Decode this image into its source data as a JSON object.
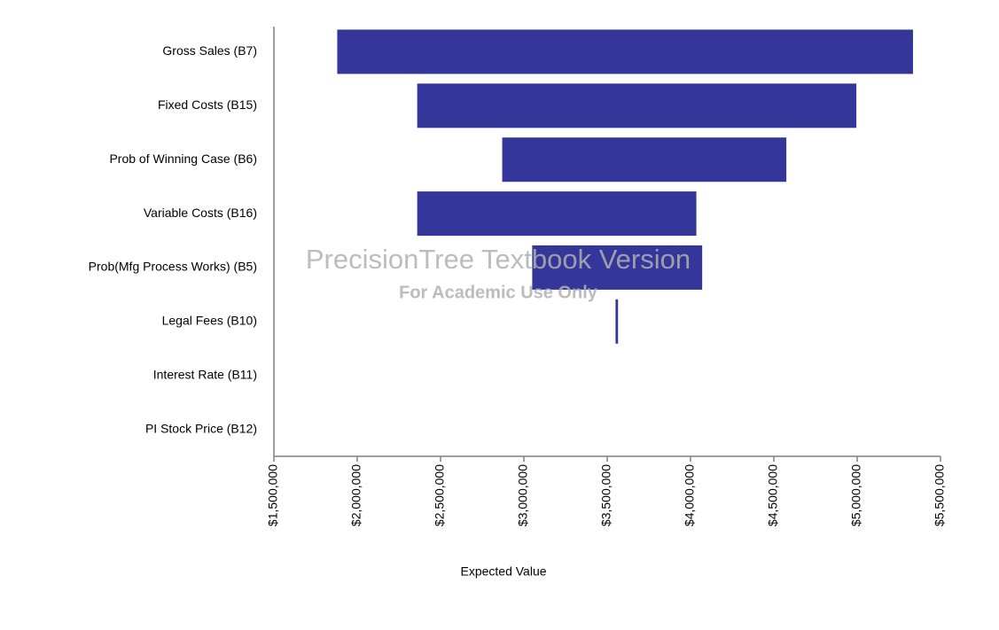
{
  "chart_data": {
    "type": "tornado",
    "categories": [
      "Gross Sales (B7)",
      "Fixed Costs (B15)",
      "Prob of Winning Case (B6)",
      "Variable Costs (B16)",
      "Prob(Mfg Process Works) (B5)",
      "Legal Fees (B10)",
      "Interest Rate (B11)",
      "PI Stock Price (B12)"
    ],
    "low": [
      1880000,
      2360000,
      2870000,
      2360000,
      3050000,
      3550000,
      null,
      null
    ],
    "high": [
      5335000,
      4995000,
      4575000,
      4035000,
      4070000,
      3565000,
      null,
      null
    ],
    "color": "#343799",
    "xlabel": "Expected Value",
    "xlim": [
      1500000,
      5500000
    ],
    "xticks": [
      {
        "value": 1500000,
        "label": "$1,500,000"
      },
      {
        "value": 2000000,
        "label": "$2,000,000"
      },
      {
        "value": 2500000,
        "label": "$2,500,000"
      },
      {
        "value": 3000000,
        "label": "$3,000,000"
      },
      {
        "value": 3500000,
        "label": "$3,500,000"
      },
      {
        "value": 4000000,
        "label": "$4,000,000"
      },
      {
        "value": 4500000,
        "label": "$4,500,000"
      },
      {
        "value": 5000000,
        "label": "$5,000,000"
      },
      {
        "value": 5500000,
        "label": "$5,500,000"
      }
    ],
    "watermark": "PrecisionTree Textbook Version",
    "watermark_note": "For Academic Use Only"
  }
}
